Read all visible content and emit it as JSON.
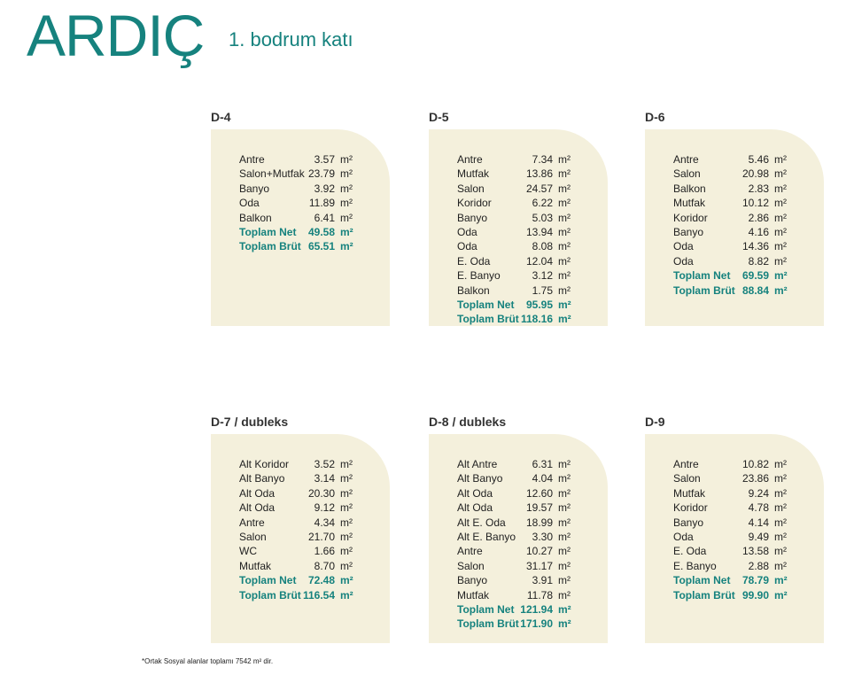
{
  "header": {
    "title": "ARDIÇ",
    "subtitle": "1. bodrum katı"
  },
  "unit": "m²",
  "units": [
    {
      "title": "D-4",
      "rows": [
        [
          "Antre",
          "3.57"
        ],
        [
          "Salon+Mutfak",
          "23.79"
        ],
        [
          "Banyo",
          "3.92"
        ],
        [
          "Oda",
          "11.89"
        ],
        [
          "Balkon",
          "6.41"
        ]
      ],
      "totals": [
        [
          "Toplam Net",
          "49.58"
        ],
        [
          "Toplam Brüt",
          "65.51"
        ]
      ]
    },
    {
      "title": "D-5",
      "rows": [
        [
          "Antre",
          "7.34"
        ],
        [
          "Mutfak",
          "13.86"
        ],
        [
          "Salon",
          "24.57"
        ],
        [
          "Koridor",
          "6.22"
        ],
        [
          "Banyo",
          "5.03"
        ],
        [
          "Oda",
          "13.94"
        ],
        [
          "Oda",
          "8.08"
        ],
        [
          "E. Oda",
          "12.04"
        ],
        [
          "E. Banyo",
          "3.12"
        ],
        [
          "Balkon",
          "1.75"
        ]
      ],
      "totals": [
        [
          "Toplam Net",
          "95.95"
        ],
        [
          "Toplam Brüt",
          "118.16"
        ]
      ]
    },
    {
      "title": "D-6",
      "rows": [
        [
          "Antre",
          "5.46"
        ],
        [
          "Salon",
          "20.98"
        ],
        [
          "Balkon",
          "2.83"
        ],
        [
          "Mutfak",
          "10.12"
        ],
        [
          "Koridor",
          "2.86"
        ],
        [
          "Banyo",
          "4.16"
        ],
        [
          "Oda",
          "14.36"
        ],
        [
          "Oda",
          "8.82"
        ]
      ],
      "totals": [
        [
          "Toplam Net",
          "69.59"
        ],
        [
          "Toplam Brüt",
          "88.84"
        ]
      ]
    },
    {
      "title": "D-7 / dubleks",
      "rows": [
        [
          "Alt Koridor",
          "3.52"
        ],
        [
          "Alt Banyo",
          "3.14"
        ],
        [
          "Alt Oda",
          "20.30"
        ],
        [
          "Alt Oda",
          "9.12"
        ],
        [
          "Antre",
          "4.34"
        ],
        [
          "Salon",
          "21.70"
        ],
        [
          "WC",
          "1.66"
        ],
        [
          "Mutfak",
          "8.70"
        ]
      ],
      "totals": [
        [
          "Toplam Net",
          "72.48"
        ],
        [
          "Toplam Brüt",
          "116.54"
        ]
      ]
    },
    {
      "title": "D-8 / dubleks",
      "rows": [
        [
          "Alt Antre",
          "6.31"
        ],
        [
          "Alt Banyo",
          "4.04"
        ],
        [
          "Alt Oda",
          "12.60"
        ],
        [
          "Alt Oda",
          "19.57"
        ],
        [
          "Alt E. Oda",
          "18.99"
        ],
        [
          "Alt E. Banyo",
          "3.30"
        ],
        [
          "Antre",
          "10.27"
        ],
        [
          "Salon",
          "31.17"
        ],
        [
          "Banyo",
          "3.91"
        ],
        [
          "Mutfak",
          "11.78"
        ]
      ],
      "totals": [
        [
          "Toplam Net",
          "121.94"
        ],
        [
          "Toplam Brüt",
          "171.90"
        ]
      ]
    },
    {
      "title": "D-9",
      "rows": [
        [
          "Antre",
          "10.82"
        ],
        [
          "Salon",
          "23.86"
        ],
        [
          "Mutfak",
          "9.24"
        ],
        [
          "Koridor",
          "4.78"
        ],
        [
          "Banyo",
          "4.14"
        ],
        [
          "Oda",
          "9.49"
        ],
        [
          "E. Oda",
          "13.58"
        ],
        [
          "E. Banyo",
          "2.88"
        ]
      ],
      "totals": [
        [
          "Toplam Net",
          "78.79"
        ],
        [
          "Toplam Brüt",
          "99.90"
        ]
      ]
    }
  ],
  "footnote": "*Ortak Sosyal alanlar toplamı 7542 m² dir."
}
